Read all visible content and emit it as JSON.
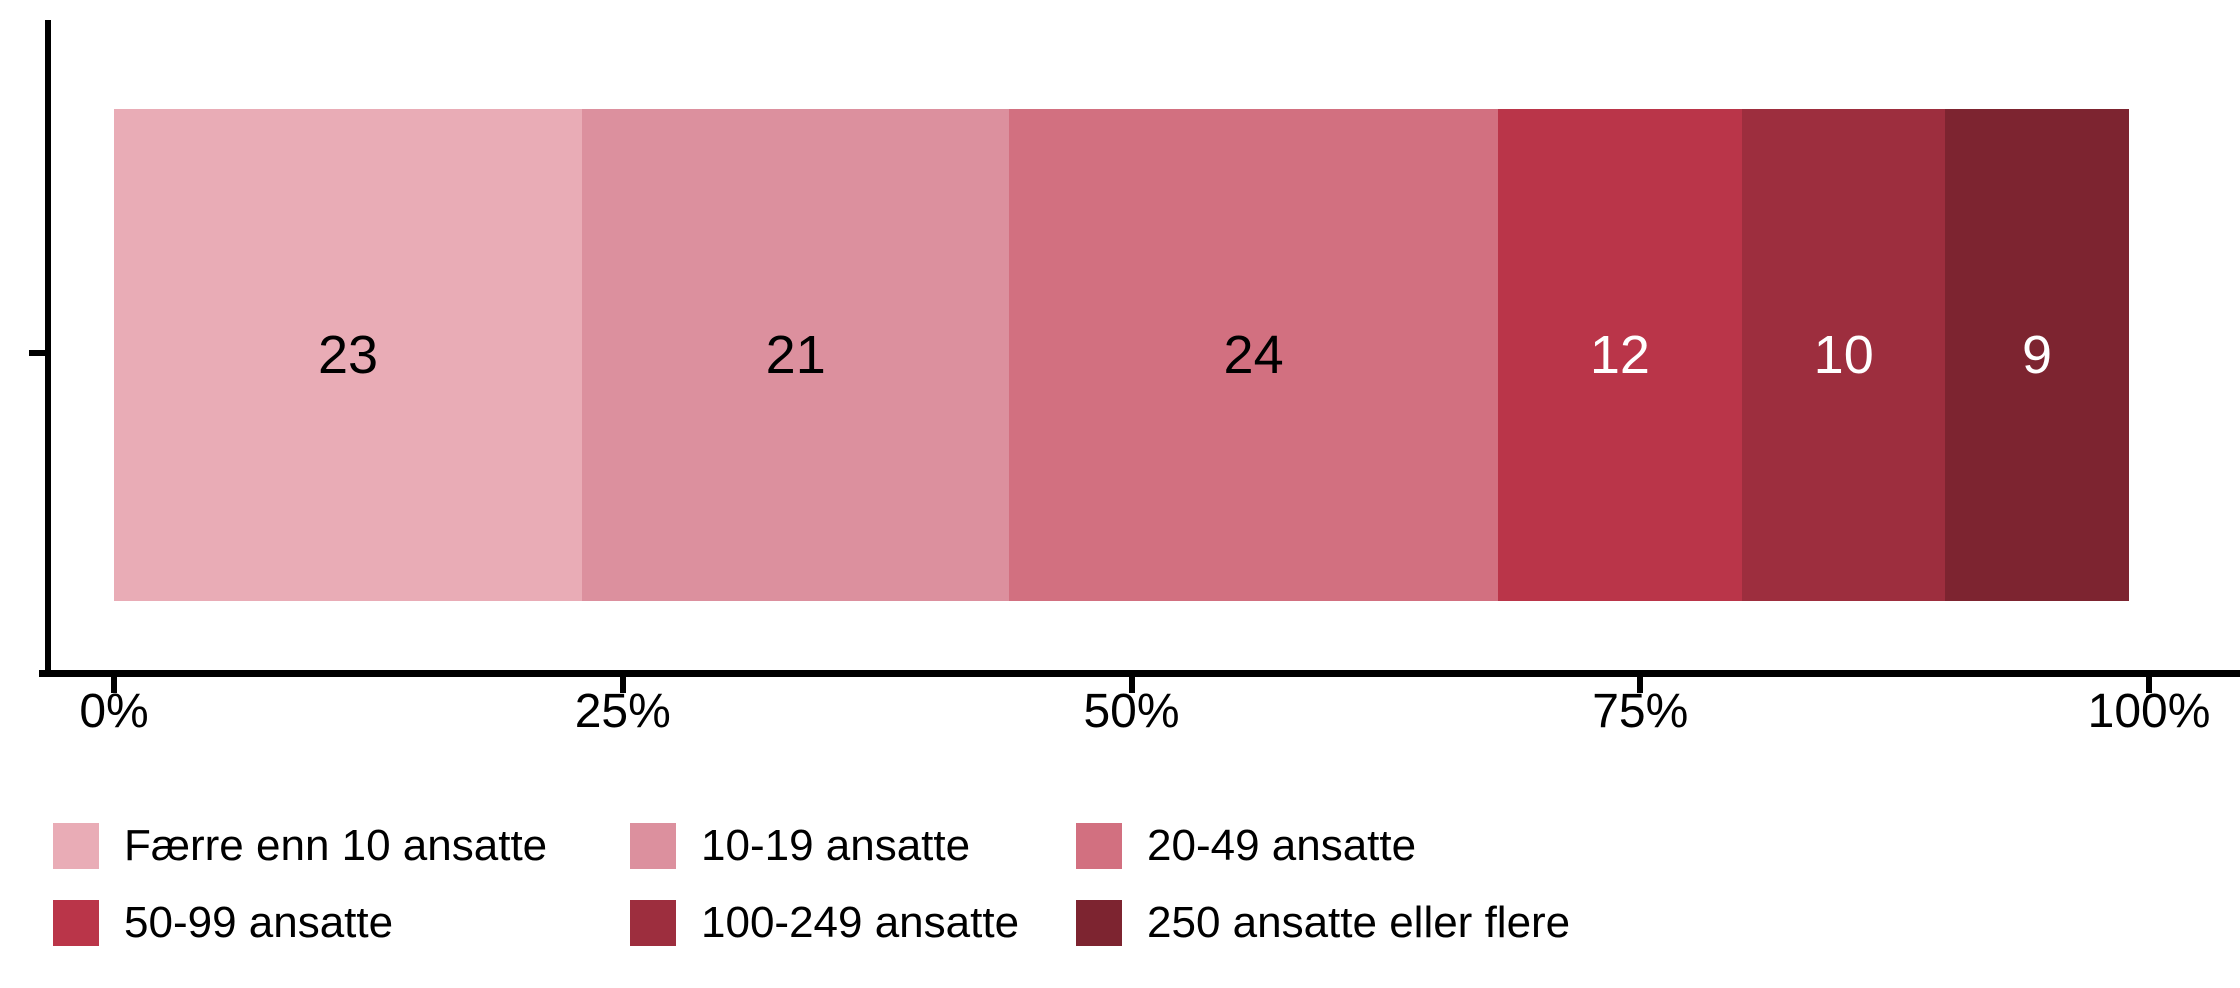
{
  "chart_data": {
    "type": "bar",
    "stacked": true,
    "orientation": "horizontal",
    "title": "",
    "categories": [
      ""
    ],
    "series": [
      {
        "name": "Færre enn 10 ansatte",
        "value": 23,
        "color": "#e9acb6",
        "label": "23",
        "label_color": "#000000"
      },
      {
        "name": "10-19 ansatte",
        "value": 21,
        "color": "#dc909e",
        "label": "21",
        "label_color": "#000000"
      },
      {
        "name": "20-49 ansatte",
        "value": 24,
        "color": "#d27080",
        "label": "24",
        "label_color": "#000000"
      },
      {
        "name": "50-99 ansatte",
        "value": 12,
        "color": "#ba3549",
        "label": "12",
        "label_color": "#ffffff"
      },
      {
        "name": "100-249 ansatte",
        "value": 10,
        "color": "#9d2e3e",
        "label": "10",
        "label_color": "#ffffff"
      },
      {
        "name": "250 ansatte eller flere",
        "value": 9,
        "color": "#7d2430",
        "label": "9",
        "label_color": "#ffffff"
      }
    ],
    "xlabel": "",
    "ylabel": "",
    "xlim": [
      0,
      100
    ],
    "x_ticks": [
      {
        "value": 0,
        "label": "0%"
      },
      {
        "value": 25,
        "label": "25%"
      },
      {
        "value": 50,
        "label": "50%"
      },
      {
        "value": 75,
        "label": "75%"
      },
      {
        "value": 100,
        "label": "100%"
      }
    ],
    "grid": false,
    "axis_color": "#000000",
    "legend_position": "bottom",
    "legend_rows": 2,
    "legend_columns": 3
  }
}
